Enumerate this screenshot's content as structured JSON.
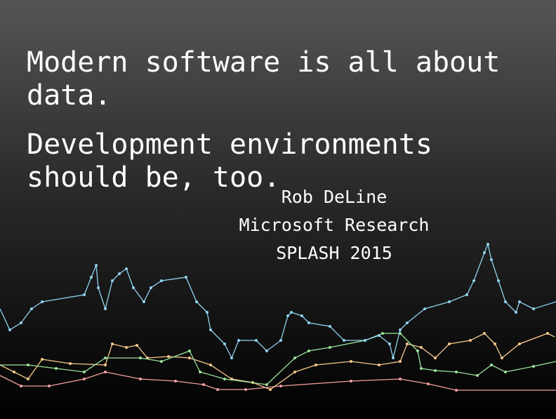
{
  "slide": {
    "headline": [
      "Modern software is all about data.",
      "Development environments should be, too."
    ],
    "author": "Rob DeLine",
    "affiliation": "Microsoft Research",
    "event": "SPLASH 2015"
  }
}
